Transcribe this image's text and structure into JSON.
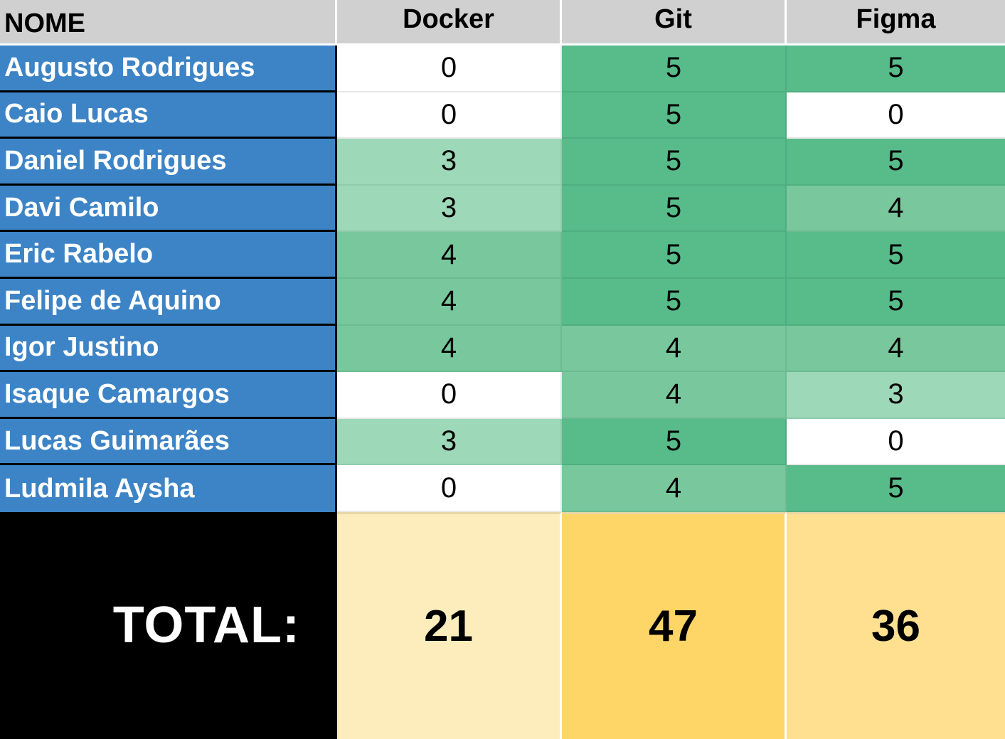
{
  "header": {
    "name_label": "NOME",
    "columns": [
      "Docker",
      "Git",
      "Figma"
    ]
  },
  "rows": [
    {
      "name": "Augusto Rodrigues",
      "scores": [
        "0",
        "5",
        "5"
      ]
    },
    {
      "name": "Caio Lucas",
      "scores": [
        "0",
        "5",
        "0"
      ]
    },
    {
      "name": "Daniel Rodrigues",
      "scores": [
        "3",
        "5",
        "5"
      ]
    },
    {
      "name": "Davi Camilo",
      "scores": [
        "3",
        "5",
        "4"
      ]
    },
    {
      "name": "Eric Rabelo",
      "scores": [
        "4",
        "5",
        "5"
      ]
    },
    {
      "name": "Felipe de Aquino",
      "scores": [
        "4",
        "5",
        "5"
      ]
    },
    {
      "name": "Igor Justino",
      "scores": [
        "4",
        "4",
        "4"
      ]
    },
    {
      "name": "Isaque Camargos",
      "scores": [
        "0",
        "4",
        "3"
      ]
    },
    {
      "name": "Lucas Guimarães",
      "scores": [
        "3",
        "5",
        "0"
      ]
    },
    {
      "name": "Ludmila Aysha",
      "scores": [
        "0",
        "4",
        "5"
      ]
    }
  ],
  "totals": {
    "label": "TOTAL:",
    "values": [
      "21",
      "47",
      "36"
    ]
  },
  "colors": {
    "header_bg": "#d0d0d0",
    "name_bg": "#3d84c6",
    "score_0": "#ffffff",
    "score_3": "#9dd8b9",
    "score_4": "#79c89d",
    "score_5": "#57bb8a",
    "total_label_bg": "#000000",
    "total_docker": "#fdedbd",
    "total_git": "#fed567",
    "total_figma": "#fee090"
  }
}
